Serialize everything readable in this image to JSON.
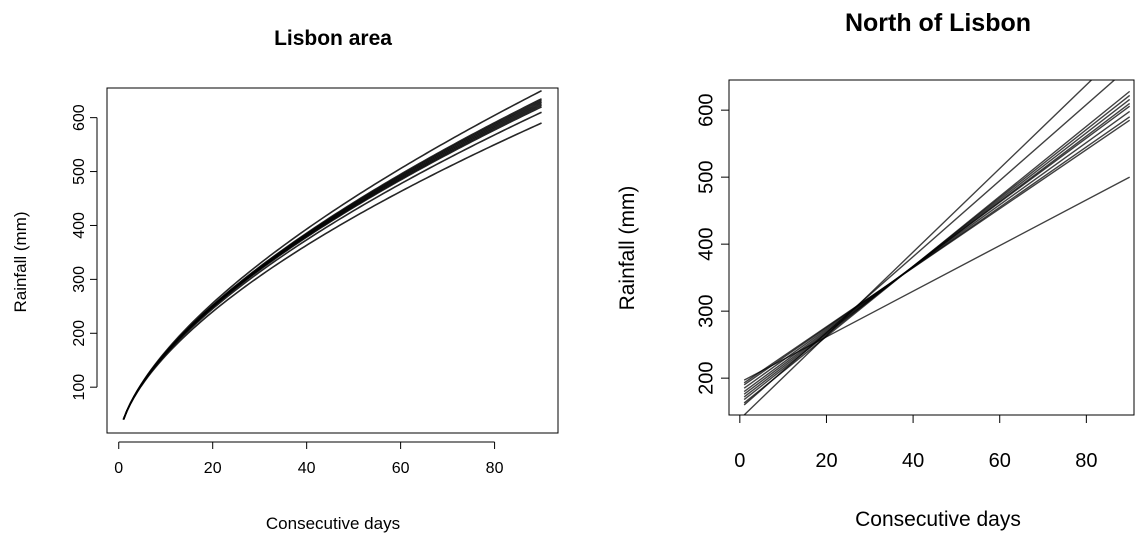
{
  "chart_data": [
    {
      "type": "line",
      "title": "Lisbon area",
      "xlabel": "Consecutive days",
      "ylabel": "Rainfall (mm)",
      "xlim": [
        -2.5,
        93.5
      ],
      "ylim": [
        15,
        655
      ],
      "xticks": [
        "0",
        "20",
        "40",
        "60",
        "80"
      ],
      "yticks": [
        "100",
        "200",
        "300",
        "400",
        "500",
        "600"
      ],
      "grid": false,
      "legend": "none",
      "curve_form": "power",
      "x_range": [
        1,
        90
      ],
      "series": [
        {
          "values_at_x": [
            [
              1,
              40
            ],
            [
              30,
              315
            ],
            [
              90,
              650
            ]
          ]
        },
        {
          "values_at_x": [
            [
              1,
              40
            ],
            [
              30,
              313
            ],
            [
              90,
              635
            ]
          ]
        },
        {
          "values_at_x": [
            [
              1,
              40
            ],
            [
              30,
              312
            ],
            [
              90,
              632
            ]
          ]
        },
        {
          "values_at_x": [
            [
              1,
              40
            ],
            [
              30,
              311
            ],
            [
              90,
              629
            ]
          ]
        },
        {
          "values_at_x": [
            [
              1,
              40
            ],
            [
              30,
              310
            ],
            [
              90,
              626
            ]
          ]
        },
        {
          "values_at_x": [
            [
              1,
              40
            ],
            [
              30,
              309
            ],
            [
              90,
              623
            ]
          ]
        },
        {
          "values_at_x": [
            [
              1,
              40
            ],
            [
              30,
              308
            ],
            [
              90,
              620
            ]
          ]
        },
        {
          "values_at_x": [
            [
              1,
              40
            ],
            [
              30,
              306
            ],
            [
              90,
              610
            ]
          ]
        },
        {
          "values_at_x": [
            [
              1,
              40
            ],
            [
              30,
              304
            ],
            [
              90,
              590
            ]
          ]
        }
      ]
    },
    {
      "type": "line",
      "title": "North of Lisbon",
      "xlabel": "Consecutive days",
      "ylabel": "Rainfall (mm)",
      "xlim": [
        -2.5,
        91
      ],
      "ylim": [
        145,
        645
      ],
      "xticks": [
        "0",
        "20",
        "40",
        "60",
        "80"
      ],
      "yticks": [
        "200",
        "300",
        "400",
        "500",
        "600"
      ],
      "grid": false,
      "legend": "none",
      "curve_form": "linear",
      "series": [
        {
          "values_at_x": [
            [
              1,
              145
            ],
            [
              90,
              700
            ]
          ]
        },
        {
          "values_at_x": [
            [
              1,
              160
            ],
            [
              90,
              665
            ]
          ]
        },
        {
          "values_at_x": [
            [
              1,
              163
            ],
            [
              90,
              628
            ]
          ]
        },
        {
          "values_at_x": [
            [
              1,
              168
            ],
            [
              90,
              622
            ]
          ]
        },
        {
          "values_at_x": [
            [
              1,
              172
            ],
            [
              90,
              616
            ]
          ]
        },
        {
          "values_at_x": [
            [
              1,
              176
            ],
            [
              90,
              610
            ]
          ]
        },
        {
          "values_at_x": [
            [
              1,
              180
            ],
            [
              90,
              606
            ]
          ]
        },
        {
          "values_at_x": [
            [
              1,
              185
            ],
            [
              90,
              598
            ]
          ]
        },
        {
          "values_at_x": [
            [
              1,
              190
            ],
            [
              90,
              590
            ]
          ]
        },
        {
          "values_at_x": [
            [
              1,
              193
            ],
            [
              90,
              585
            ]
          ]
        },
        {
          "values_at_x": [
            [
              1,
              197
            ],
            [
              90,
              500
            ]
          ]
        }
      ]
    }
  ]
}
